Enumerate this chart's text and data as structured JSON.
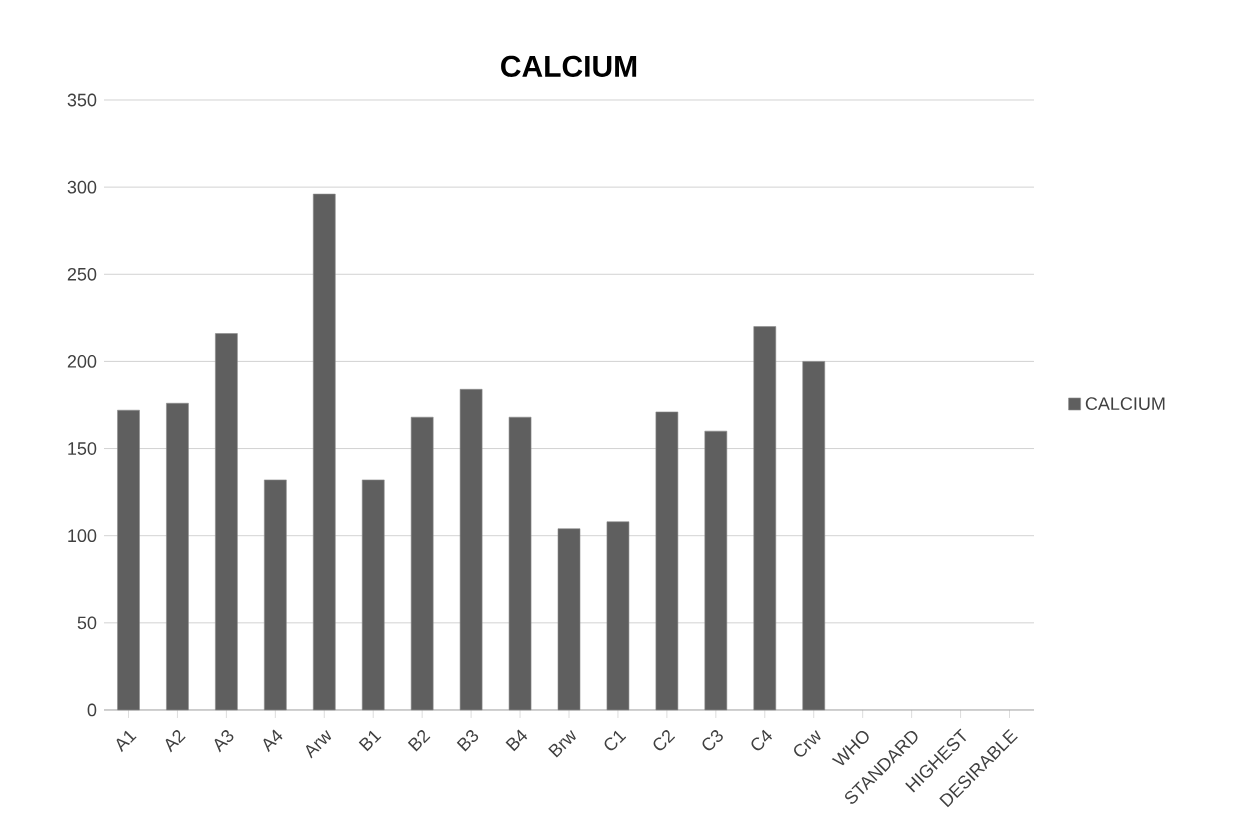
{
  "chart_data": {
    "type": "bar",
    "title": "CALCIUM",
    "categories": [
      "A1",
      "A2",
      "A3",
      "A4",
      "Arw",
      "B1",
      "B2",
      "B3",
      "B4",
      "Brw",
      "C1",
      "C2",
      "C3",
      "C4",
      "Crw",
      "WHO",
      "STANDARD",
      "HIGHEST",
      "DESIRABLE"
    ],
    "series": [
      {
        "name": "CALCIUM",
        "color": "#5f5f5f",
        "values": [
          172,
          176,
          216,
          132,
          296,
          132,
          168,
          184,
          168,
          104,
          108,
          171,
          160,
          220,
          200,
          null,
          null,
          null,
          null
        ]
      }
    ],
    "ylim": [
      0,
      350
    ],
    "yticks": [
      0,
      50,
      100,
      150,
      200,
      250,
      300,
      350
    ],
    "grid": "y",
    "legend": "right"
  }
}
